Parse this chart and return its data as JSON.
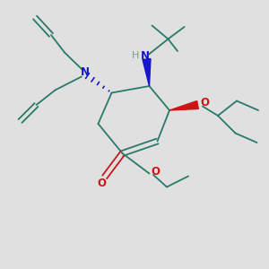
{
  "bg_color": "#e0e0e0",
  "bond_color": "#2a7a68",
  "N_color": "#1515cc",
  "O_color": "#cc1515",
  "H_color": "#7a9a9a",
  "line_width": 1.3,
  "fig_size": [
    3.0,
    3.0
  ],
  "dpi": 100,
  "xlim": [
    0,
    10
  ],
  "ylim": [
    0,
    10
  ]
}
